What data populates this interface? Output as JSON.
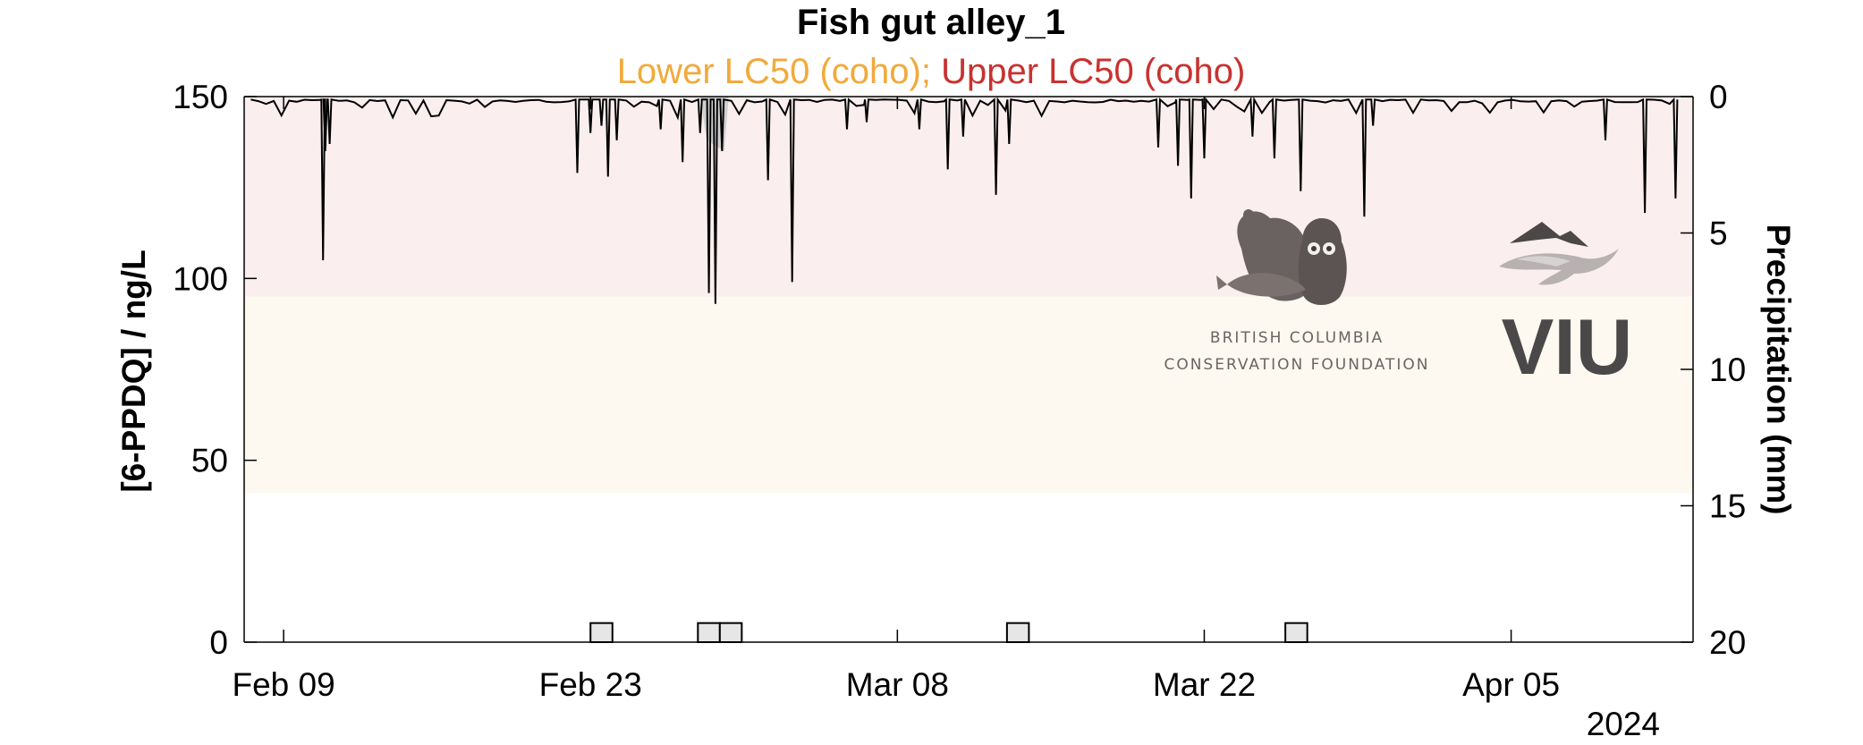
{
  "chart_data": {
    "type": "line",
    "title": "Fish gut alley_1",
    "subtitle_parts": [
      {
        "text": "Lower LC50 (coho)",
        "color": "#f2a93b"
      },
      {
        "text": "; ",
        "color": "#f2a93b"
      },
      {
        "text": "Upper LC50 (coho)",
        "color": "#c8322f"
      }
    ],
    "ylabel": "[6-PPDQ] / ng/L",
    "ylim": [
      0,
      150
    ],
    "yticks": [
      0,
      50,
      100,
      150
    ],
    "y2label": "Precipitation (mm)",
    "y2lim": [
      0,
      20
    ],
    "y2ticks": [
      0,
      5,
      10,
      15,
      20
    ],
    "y2_reversed": true,
    "xlim": [
      -1.8,
      64.3
    ],
    "xticks": [
      {
        "label": "Feb 09",
        "day": 0
      },
      {
        "label": "Feb 23",
        "day": 14
      },
      {
        "label": "Mar 08",
        "day": 28
      },
      {
        "label": "Mar 22",
        "day": 42
      },
      {
        "label": "Apr 05",
        "day": 56
      }
    ],
    "year_label": "2024",
    "bands": [
      {
        "name": "Upper LC50 (coho)",
        "from": 95,
        "to": 150,
        "color": "#fbeeee"
      },
      {
        "name": "Lower LC50 (coho)",
        "from": 41,
        "to": 95,
        "color": "#fdf8f0"
      }
    ],
    "series_colors": {
      "concentration": "#000000",
      "precip_fill": "#e6e6e6"
    },
    "concentration_spikes": [
      {
        "day": 1.8,
        "value": 105
      },
      {
        "day": 1.9,
        "value": 135
      },
      {
        "day": 2.1,
        "value": 137
      },
      {
        "day": 13.4,
        "value": 129
      },
      {
        "day": 14.0,
        "value": 140
      },
      {
        "day": 14.5,
        "value": 142
      },
      {
        "day": 14.8,
        "value": 128
      },
      {
        "day": 15.2,
        "value": 138
      },
      {
        "day": 17.2,
        "value": 141
      },
      {
        "day": 18.2,
        "value": 132
      },
      {
        "day": 19.0,
        "value": 140
      },
      {
        "day": 19.4,
        "value": 96
      },
      {
        "day": 19.7,
        "value": 93
      },
      {
        "day": 20.0,
        "value": 135
      },
      {
        "day": 22.1,
        "value": 127
      },
      {
        "day": 23.2,
        "value": 99
      },
      {
        "day": 25.7,
        "value": 141
      },
      {
        "day": 26.6,
        "value": 143
      },
      {
        "day": 29.0,
        "value": 141
      },
      {
        "day": 30.3,
        "value": 130
      },
      {
        "day": 31.0,
        "value": 139
      },
      {
        "day": 32.5,
        "value": 123
      },
      {
        "day": 33.1,
        "value": 137
      },
      {
        "day": 39.9,
        "value": 136
      },
      {
        "day": 40.8,
        "value": 131
      },
      {
        "day": 41.4,
        "value": 122
      },
      {
        "day": 42.0,
        "value": 133
      },
      {
        "day": 44.2,
        "value": 139
      },
      {
        "day": 45.2,
        "value": 133
      },
      {
        "day": 46.4,
        "value": 124
      },
      {
        "day": 49.3,
        "value": 117
      },
      {
        "day": 49.7,
        "value": 142
      },
      {
        "day": 60.3,
        "value": 138
      },
      {
        "day": 62.1,
        "value": 118
      },
      {
        "day": 63.5,
        "value": 122
      }
    ],
    "precipitation_bars": [
      {
        "start": 14.0,
        "end": 15.0,
        "mm": 0.7
      },
      {
        "start": 18.9,
        "end": 19.9,
        "mm": 0.7
      },
      {
        "start": 19.9,
        "end": 20.9,
        "mm": 0.7
      },
      {
        "start": 33.0,
        "end": 34.0,
        "mm": 0.7
      },
      {
        "start": 45.7,
        "end": 46.7,
        "mm": 0.7
      }
    ]
  },
  "logos": {
    "bccf_line1": "BRITISH COLUMBIA",
    "bccf_line2": "CONSERVATION FOUNDATION",
    "viu": "VIU"
  }
}
